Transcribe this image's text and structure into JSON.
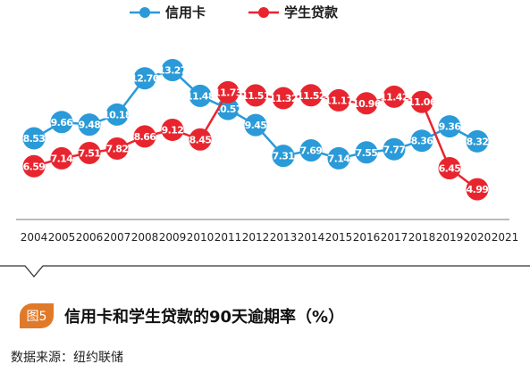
{
  "chart_data": {
    "type": "line",
    "x": [
      "2004",
      "2005",
      "2006",
      "2007",
      "2008",
      "2009",
      "2010",
      "2011",
      "2012",
      "2013",
      "2014",
      "2015",
      "2016",
      "2017",
      "2018",
      "2019",
      "2020",
      "2021"
    ],
    "series": [
      {
        "name": "信用卡",
        "color": "#2a9ad8",
        "values": [
          8.53,
          9.66,
          9.48,
          10.18,
          12.7,
          13.27,
          11.48,
          10.57,
          9.45,
          7.31,
          7.69,
          7.14,
          7.55,
          7.77,
          8.36,
          9.36,
          8.32,
          null
        ],
        "labels": [
          "8.53",
          "9.66",
          "9.48",
          "10.18",
          "12.70",
          "13.27",
          "11.48",
          "10.57",
          "9.45",
          "7.31",
          "7.69",
          "7.14",
          "7.55",
          "7.77",
          "8.36",
          "9.36",
          "8.32",
          ""
        ]
      },
      {
        "name": "学生贷款",
        "color": "#e8252e",
        "values": [
          6.59,
          7.14,
          7.51,
          7.82,
          8.66,
          9.12,
          8.45,
          11.73,
          11.51,
          11.32,
          11.52,
          11.17,
          10.96,
          11.42,
          11.06,
          6.45,
          4.99,
          null
        ],
        "labels": [
          "6.59",
          "7.14",
          "7.51",
          "7.82",
          "8.66",
          "9.12",
          "8.45",
          "11.73",
          "11.51",
          "11.32",
          "11.52",
          "11.17",
          "10.96",
          "11.42",
          "11.06",
          "6.45",
          "4.99",
          ""
        ]
      }
    ],
    "title": "信用卡和学生贷款的90天逾期率（%）",
    "xlabel": "",
    "ylabel": "",
    "ylim": [
      4.5,
      13.8
    ],
    "grid": false,
    "legend_position": "top"
  },
  "caption": {
    "figure_label": "图5",
    "title": "信用卡和学生贷款的90天逾期率（%）",
    "source": "数据来源：纽约联储"
  }
}
